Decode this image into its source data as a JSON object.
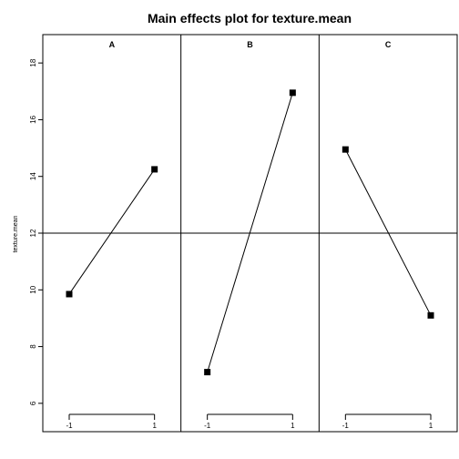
{
  "chart_data": {
    "type": "line",
    "title": "Main effects plot for texture.mean",
    "ylabel": "texture.mean",
    "xlabel": "",
    "ylim": [
      5,
      19
    ],
    "yticks": [
      6,
      8,
      10,
      12,
      14,
      16,
      18
    ],
    "grand_mean": 12,
    "x_levels": [
      "-1",
      "1"
    ],
    "panels": [
      {
        "factor": "A",
        "values": [
          9.85,
          14.25
        ]
      },
      {
        "factor": "B",
        "values": [
          7.1,
          16.95
        ]
      },
      {
        "factor": "C",
        "values": [
          14.95,
          9.1
        ]
      }
    ],
    "marker": "square",
    "marker_color": "#000000",
    "line_color": "#000000"
  }
}
